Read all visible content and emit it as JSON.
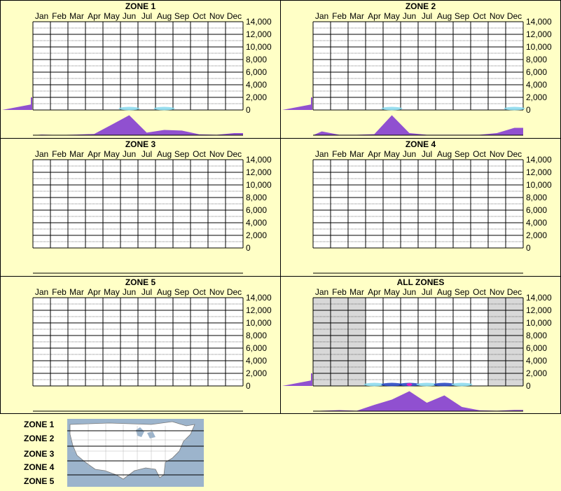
{
  "months": [
    "Jan",
    "Feb",
    "Mar",
    "Apr",
    "May",
    "Jun",
    "Jul",
    "Aug",
    "Sep",
    "Oct",
    "Nov",
    "Dec"
  ],
  "y_ticks": [
    "14,000",
    "12,000",
    "10,000",
    "8,000",
    "6,000",
    "4,000",
    "2,000",
    "0"
  ],
  "colors": {
    "background": "#ffffc6",
    "purple": "#9050d0",
    "heat_cyan": "#86d8ec",
    "heat_blue": "#2040c0",
    "heat_magenta": "#e020c0",
    "shade": "#d8d8d8"
  },
  "legend": {
    "labels": [
      "ZONE 1",
      "ZONE 2",
      "ZONE 3",
      "ZONE 4",
      "ZONE 5"
    ],
    "map_icon": "usa-map-zones-icon"
  },
  "chart_data": [
    {
      "type": "area",
      "title": "ZONE 1",
      "x": [
        "Jan",
        "Feb",
        "Mar",
        "Apr",
        "May",
        "Jun",
        "Jul",
        "Aug",
        "Sep",
        "Oct",
        "Nov",
        "Dec"
      ],
      "ylim": [
        0,
        14000
      ],
      "grid": true,
      "monthly_activity": [
        0.03,
        0.01,
        0.03,
        0.06,
        0.5,
        0.95,
        0.12,
        0.25,
        0.22,
        0.04,
        0.02,
        0.1
      ],
      "heat_strip": [
        0,
        0,
        0,
        0,
        0,
        0.6,
        0,
        0.3,
        0,
        0,
        0,
        0
      ],
      "side_bar": 0.25
    },
    {
      "type": "area",
      "title": "ZONE 2",
      "x": [
        "Jan",
        "Feb",
        "Mar",
        "Apr",
        "May",
        "Jun",
        "Jul",
        "Aug",
        "Sep",
        "Oct",
        "Nov",
        "Dec"
      ],
      "ylim": [
        0,
        14000
      ],
      "grid": true,
      "monthly_activity": [
        0.18,
        0.02,
        0.02,
        0.05,
        0.95,
        0.1,
        0.02,
        0.02,
        0.02,
        0.02,
        0.1,
        0.35
      ],
      "heat_strip": [
        0,
        0,
        0,
        0,
        0.6,
        0,
        0,
        0,
        0,
        0,
        0,
        0.3
      ],
      "side_bar": 0.25
    },
    {
      "type": "area",
      "title": "ZONE 3",
      "x": [
        "Jan",
        "Feb",
        "Mar",
        "Apr",
        "May",
        "Jun",
        "Jul",
        "Aug",
        "Sep",
        "Oct",
        "Nov",
        "Dec"
      ],
      "ylim": [
        0,
        14000
      ],
      "grid": true,
      "monthly_activity": [
        0,
        0,
        0,
        0,
        0,
        0,
        0,
        0,
        0,
        0,
        0,
        0
      ],
      "heat_strip": [
        0,
        0,
        0,
        0,
        0,
        0,
        0,
        0,
        0,
        0,
        0,
        0
      ],
      "side_bar": 0
    },
    {
      "type": "area",
      "title": "ZONE 4",
      "x": [
        "Jan",
        "Feb",
        "Mar",
        "Apr",
        "May",
        "Jun",
        "Jul",
        "Aug",
        "Sep",
        "Oct",
        "Nov",
        "Dec"
      ],
      "ylim": [
        0,
        14000
      ],
      "grid": true,
      "monthly_activity": [
        0,
        0,
        0,
        0,
        0,
        0,
        0,
        0,
        0,
        0,
        0,
        0
      ],
      "heat_strip": [
        0,
        0,
        0,
        0,
        0,
        0,
        0,
        0,
        0,
        0,
        0,
        0
      ],
      "side_bar": 0
    },
    {
      "type": "area",
      "title": "ZONE 5",
      "x": [
        "Jan",
        "Feb",
        "Mar",
        "Apr",
        "May",
        "Jun",
        "Jul",
        "Aug",
        "Sep",
        "Oct",
        "Nov",
        "Dec"
      ],
      "ylim": [
        0,
        14000
      ],
      "grid": true,
      "monthly_activity": [
        0,
        0,
        0,
        0,
        0,
        0,
        0,
        0,
        0,
        0,
        0,
        0
      ],
      "heat_strip": [
        0,
        0,
        0,
        0,
        0,
        0,
        0,
        0,
        0,
        0,
        0,
        0
      ],
      "side_bar": 0
    },
    {
      "type": "area",
      "title": "ALL ZONES",
      "x": [
        "Jan",
        "Feb",
        "Mar",
        "Apr",
        "May",
        "Jun",
        "Jul",
        "Aug",
        "Sep",
        "Oct",
        "Nov",
        "Dec"
      ],
      "ylim": [
        0,
        14000
      ],
      "grid": true,
      "monthly_activity": [
        0.02,
        0.05,
        0.02,
        0.3,
        0.55,
        0.95,
        0.4,
        0.75,
        0.2,
        0.04,
        0.02,
        0.06
      ],
      "heat_strip": [
        0,
        0,
        0,
        0.4,
        0.8,
        1.0,
        0.6,
        0.9,
        0.3,
        0,
        0,
        0
      ],
      "shaded_months": [
        "Jan",
        "Feb",
        "Mar",
        "Nov",
        "Dec"
      ],
      "side_bar": 0.25
    }
  ]
}
